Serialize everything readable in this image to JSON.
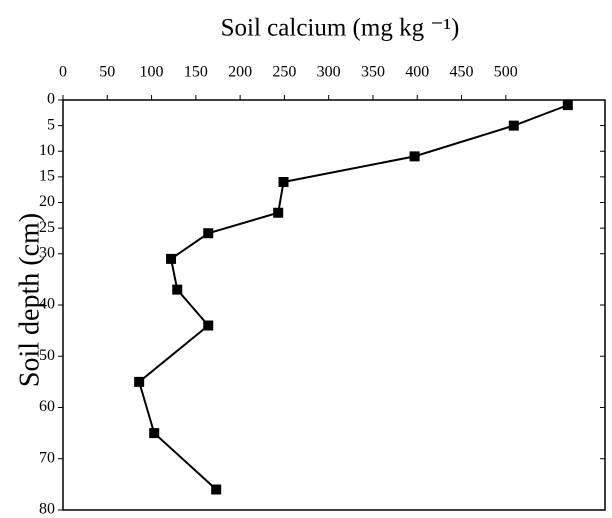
{
  "chart_data": {
    "type": "line",
    "title": "Soil calcium (mg kg ⁻¹)",
    "y_label": "Soil depth (cm)",
    "series": [
      {
        "name": "Soil calcium",
        "color": "#000000",
        "x": [
          570,
          509,
          397,
          249,
          243,
          164,
          122,
          129,
          164,
          86,
          103,
          173
        ],
        "values": [
          1,
          5,
          11,
          16,
          22,
          26,
          31,
          37,
          44,
          55,
          65,
          76
        ]
      }
    ],
    "xlim": [
      0,
      612
    ],
    "xticks": [
      0,
      50,
      100,
      150,
      200,
      250,
      300,
      350,
      400,
      450,
      500
    ],
    "ylim": [
      0,
      80
    ],
    "yticks": [
      0,
      5,
      10,
      15,
      20,
      25,
      30,
      40,
      50,
      60,
      70,
      80
    ],
    "y_inverted": true,
    "x_axis_top": true,
    "marker": "square",
    "grid": false
  }
}
